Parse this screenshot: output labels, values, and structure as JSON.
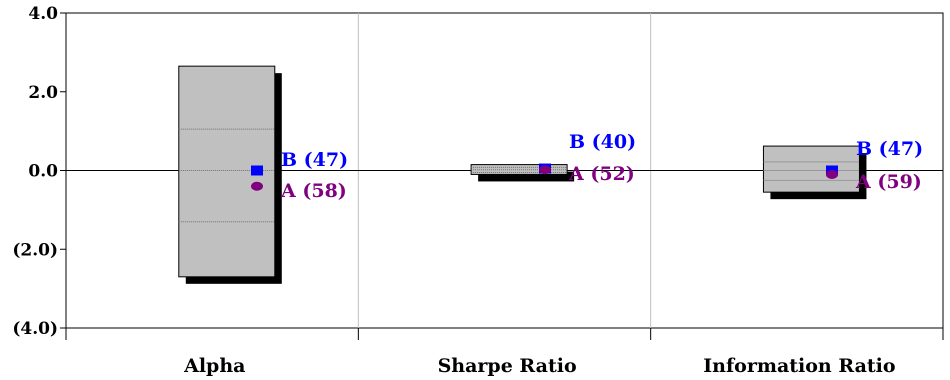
{
  "chart_data": {
    "type": "floating-bar",
    "categories": [
      "Alpha",
      "Sharpe Ratio",
      "Information Ratio"
    ],
    "ylim": [
      -4.0,
      4.0
    ],
    "yticks": [
      4.0,
      2.0,
      0.0,
      -2.0,
      -4.0
    ],
    "ytick_labels": [
      "4.0",
      "2.0",
      "0.0",
      "(2.0)",
      "(4.0)"
    ],
    "grid": true,
    "ranges": [
      {
        "category": "Alpha",
        "high": 2.65,
        "upper_quartile": 1.05,
        "median": 0.0,
        "lower_quartile": -1.3,
        "low": -2.7
      },
      {
        "category": "Sharpe Ratio",
        "high": 0.15,
        "upper_quartile": 0.08,
        "median": 0.02,
        "lower_quartile": -0.05,
        "low": -0.1
      },
      {
        "category": "Information Ratio",
        "high": 0.62,
        "upper_quartile": 0.22,
        "median": 0.0,
        "lower_quartile": -0.25,
        "low": -0.55
      }
    ],
    "series": [
      {
        "name": "B",
        "marker": "square",
        "color": "#0000ff",
        "values": [
          0.0,
          0.05,
          0.0
        ],
        "ranks": [
          "47",
          "40",
          "47"
        ],
        "labels": [
          "B (47)",
          "B (40)",
          "B (47)"
        ]
      },
      {
        "name": "A",
        "marker": "circle",
        "color": "#800080",
        "values": [
          -0.4,
          0.02,
          -0.1
        ],
        "ranks": [
          "58",
          "52",
          "59"
        ],
        "labels": [
          "A (58)",
          "A (52)",
          "A (59)"
        ]
      }
    ]
  }
}
